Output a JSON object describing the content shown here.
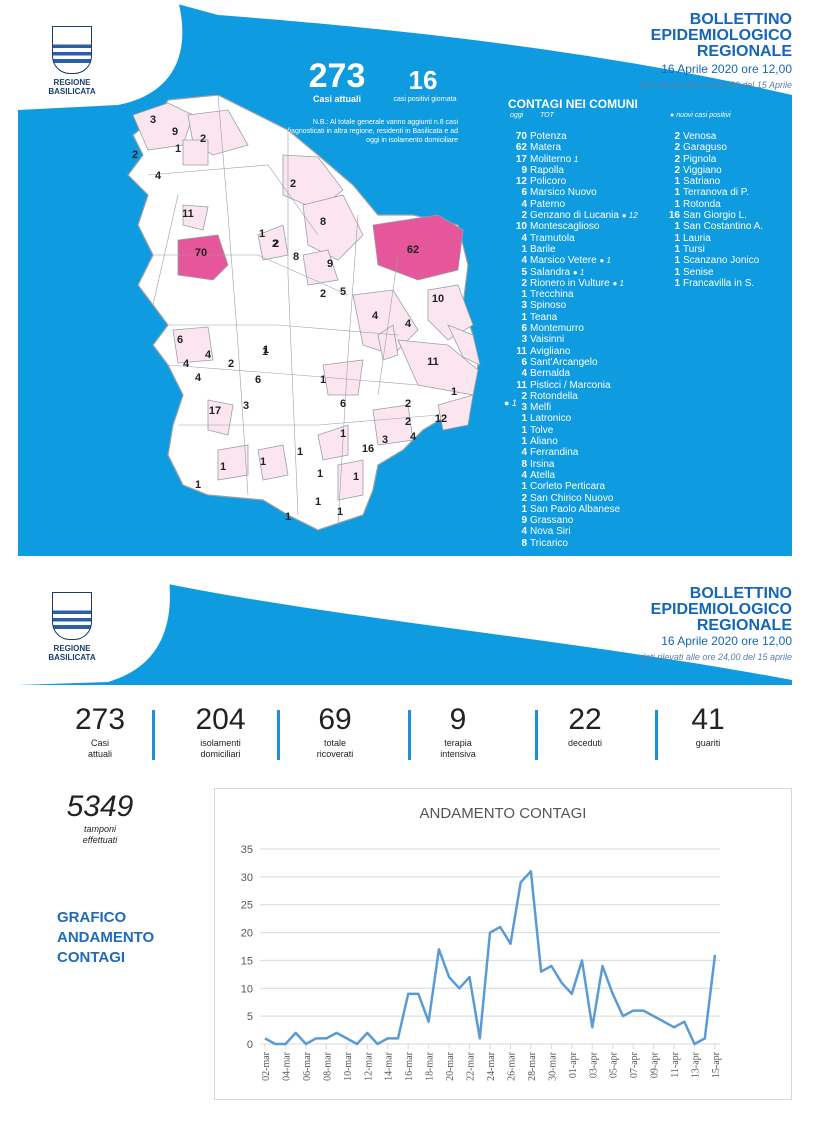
{
  "header": {
    "logo_text": "REGIONE BASILICATA",
    "title_line1": "BOLLETTINO",
    "title_line2": "EPIDEMIOLOGICO",
    "title_line3": "REGIONALE",
    "date": "16 Aprile 2020 ore 12,00",
    "sub_p1": "dati rilevati alle ore 24,00 del 15 Aprile",
    "sub_p2": "dati rilevati alle ore 24,00 del 15 aprile"
  },
  "summary": {
    "current_value": "273",
    "current_label": "Casi attuali",
    "daily_value": "16",
    "daily_label": "casi positivi giornata",
    "note": "N.B.: Al totale generale vanno aggiunti n.8 casi diagnosticati in altra regione, residenti in Basilicata e ad oggi in isolamento domiciliare"
  },
  "contagi": {
    "heading": "CONTAGI NEI COMUNI",
    "col_oggi": "oggi",
    "col_tot": "TOT",
    "legend": "nuovi casi positivi",
    "left": [
      {
        "n": "70",
        "name": "Potenza",
        "mark": ""
      },
      {
        "n": "62",
        "name": "Matera",
        "mark": ""
      },
      {
        "n": "17",
        "name": "Moliterno",
        "mark": "1"
      },
      {
        "n": "9",
        "name": "Rapolla",
        "mark": ""
      },
      {
        "n": "12",
        "name": "Policoro",
        "mark": ""
      },
      {
        "n": "6",
        "name": "Marsico Nuovo",
        "mark": ""
      },
      {
        "n": "4",
        "name": "Paterno",
        "mark": ""
      },
      {
        "n": "2",
        "name": "Genzano di Lucania",
        "mark": "● 12"
      },
      {
        "n": "10",
        "name": "Montescaglioso",
        "mark": ""
      },
      {
        "n": "4",
        "name": "Tramutola",
        "mark": ""
      },
      {
        "n": "1",
        "name": "Barile",
        "mark": ""
      },
      {
        "n": "4",
        "name": "Marsico Vetere",
        "mark": "● 1"
      },
      {
        "n": "5",
        "name": "Salandra",
        "mark": "● 1"
      },
      {
        "n": "2",
        "name": "Rionero in Vulture",
        "mark": "● 1"
      },
      {
        "n": "1",
        "name": "Trecchina",
        "mark": ""
      },
      {
        "n": "3",
        "name": "Spinoso",
        "mark": ""
      },
      {
        "n": "1",
        "name": "Teana",
        "mark": ""
      },
      {
        "n": "6",
        "name": "Montemurro",
        "mark": ""
      },
      {
        "n": "3",
        "name": "Vaisinni",
        "mark": ""
      },
      {
        "n": "11",
        "name": "Avigliano",
        "mark": ""
      },
      {
        "n": "6",
        "name": "Sant'Arcangelo",
        "mark": ""
      },
      {
        "n": "4",
        "name": "Bernalda",
        "mark": ""
      },
      {
        "n": "11",
        "name": "Pisticci / Marconia",
        "mark": ""
      },
      {
        "n": "2",
        "name": "Rotondella",
        "mark": ""
      },
      {
        "n": "3",
        "name": "Melfi",
        "mark": ""
      },
      {
        "n": "1",
        "name": "Latronico",
        "mark": ""
      },
      {
        "n": "1",
        "name": "Tolve",
        "mark": ""
      },
      {
        "n": "1",
        "name": "Aliano",
        "mark": ""
      },
      {
        "n": "4",
        "name": "Ferrandina",
        "mark": ""
      },
      {
        "n": "8",
        "name": "Irsina",
        "mark": ""
      },
      {
        "n": "4",
        "name": "Atella",
        "mark": ""
      },
      {
        "n": "1",
        "name": "Corleto Perticara",
        "mark": ""
      },
      {
        "n": "2",
        "name": "San Chirico Nuovo",
        "mark": ""
      },
      {
        "n": "1",
        "name": "San Paolo Albanese",
        "mark": ""
      },
      {
        "n": "9",
        "name": "Grassano",
        "mark": ""
      },
      {
        "n": "4",
        "name": "Nova Siri",
        "mark": ""
      },
      {
        "n": "8",
        "name": "Tricarico",
        "mark": ""
      }
    ],
    "right": [
      {
        "n": "2",
        "name": "Venosa"
      },
      {
        "n": "2",
        "name": "Garaguso"
      },
      {
        "n": "2",
        "name": "Pignola"
      },
      {
        "n": "2",
        "name": "Viggiano"
      },
      {
        "n": "1",
        "name": "Satriano"
      },
      {
        "n": "1",
        "name": "Terranova di P."
      },
      {
        "n": "1",
        "name": "Rotonda"
      },
      {
        "n": "16",
        "name": "San Giorgio L."
      },
      {
        "n": "1",
        "name": "San Costantino A."
      },
      {
        "n": "1",
        "name": "Lauria"
      },
      {
        "n": "1",
        "name": "Tursi"
      },
      {
        "n": "1",
        "name": "Scanzano Jonico"
      },
      {
        "n": "1",
        "name": "Senise"
      },
      {
        "n": "1",
        "name": "Francavilla in S."
      }
    ],
    "side_mark": "● 1"
  },
  "map": {
    "colors": {
      "light": "#fbe6f0",
      "mid": "#f4b6d2",
      "strong": "#e6569a",
      "border": "#9aa0a8"
    },
    "labels": [
      "3",
      "9",
      "2",
      "1",
      "2",
      "4",
      "2",
      "11",
      "8",
      "1",
      "2",
      "70",
      "8",
      "9",
      "62",
      "2",
      "2",
      "5",
      "10",
      "4",
      "6",
      "4",
      "2",
      "1",
      "4",
      "4",
      "11",
      "6",
      "4",
      "17",
      "3",
      "1",
      "1",
      "6",
      "1",
      "1",
      "2",
      "12",
      "2",
      "1",
      "3",
      "16",
      "1",
      "1",
      "4",
      "1",
      "1",
      "1",
      "1",
      "1",
      "1"
    ]
  },
  "stats": [
    {
      "value": "273",
      "label1": "Casi",
      "label2": "attuali"
    },
    {
      "value": "204",
      "label1": "isolamenti",
      "label2": "domiciliari"
    },
    {
      "value": "69",
      "label1": "totale",
      "label2": "ricoverati"
    },
    {
      "value": "9",
      "label1": "terapia",
      "label2": "intensiva"
    },
    {
      "value": "22",
      "label1": "deceduti",
      "label2": ""
    },
    {
      "value": "41",
      "label1": "guariti",
      "label2": ""
    }
  ],
  "tamponi": {
    "value": "5349",
    "label1": "tamponi",
    "label2": "effettuati"
  },
  "grafico": {
    "line1": "GRAFICO",
    "line2": "ANDAMENTO",
    "line3": "CONTAGI"
  },
  "chart_data": {
    "type": "line",
    "title": "ANDAMENTO CONTAGI",
    "xlabel": "",
    "ylabel": "",
    "ylim": [
      0,
      35
    ],
    "yticks": [
      0,
      5,
      10,
      15,
      20,
      25,
      30,
      35
    ],
    "grid": true,
    "color": "#5b9bd5",
    "x": [
      "02-mar",
      "03-mar",
      "04-mar",
      "05-mar",
      "06-mar",
      "07-mar",
      "08-mar",
      "09-mar",
      "10-mar",
      "11-mar",
      "12-mar",
      "13-mar",
      "14-mar",
      "15-mar",
      "16-mar",
      "17-mar",
      "18-mar",
      "19-mar",
      "20-mar",
      "21-mar",
      "22-mar",
      "23-mar",
      "24-mar",
      "25-mar",
      "26-mar",
      "27-mar",
      "28-mar",
      "29-mar",
      "30-mar",
      "31-mar",
      "01-apr",
      "02-apr",
      "03-apr",
      "04-apr",
      "05-apr",
      "06-apr",
      "07-apr",
      "08-apr",
      "09-apr",
      "10-apr",
      "11-apr",
      "12-apr",
      "13-apr",
      "14-apr",
      "15-apr"
    ],
    "x_tick_labels": [
      "02-mar",
      "04-mar",
      "06-mar",
      "08-mar",
      "10-mar",
      "12-mar",
      "14-mar",
      "16-mar",
      "18-mar",
      "20-mar",
      "22-mar",
      "24-mar",
      "26-mar",
      "28-mar",
      "30-mar",
      "01-apr",
      "03-apr",
      "05-apr",
      "07-apr",
      "09-apr",
      "11-apr",
      "13-apr",
      "15-apr"
    ],
    "values": [
      1,
      0,
      0,
      2,
      0,
      1,
      1,
      2,
      1,
      0,
      2,
      0,
      1,
      1,
      9,
      9,
      4,
      17,
      12,
      10,
      12,
      1,
      20,
      21,
      18,
      29,
      31,
      13,
      14,
      11,
      9,
      15,
      3,
      14,
      9,
      5,
      6,
      6,
      5,
      4,
      3,
      4,
      0,
      1,
      16
    ]
  }
}
